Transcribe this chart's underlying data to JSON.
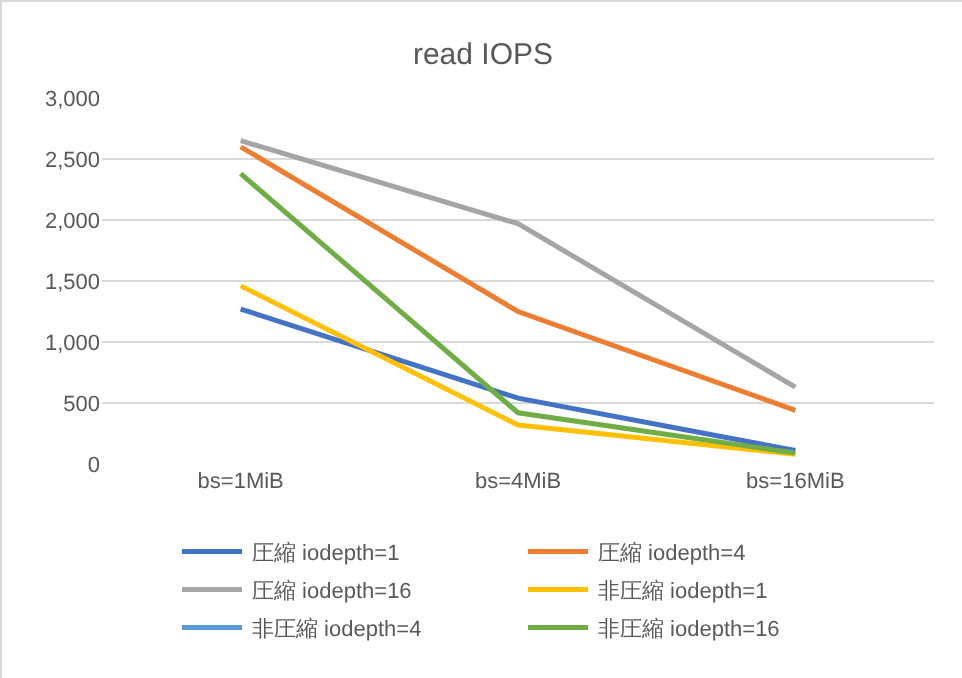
{
  "chart_data": {
    "type": "line",
    "title": "read IOPS",
    "categories": [
      "bs=1MiB",
      "bs=4MiB",
      "bs=16MiB"
    ],
    "series": [
      {
        "name": "圧縮 iodepth=1",
        "color": "#4472c4",
        "values": [
          1270,
          540,
          110
        ]
      },
      {
        "name": "圧縮 iodepth=4",
        "color": "#ed7d31",
        "values": [
          2600,
          1250,
          440
        ]
      },
      {
        "name": "圧縮 iodepth=16",
        "color": "#a5a5a5",
        "values": [
          2650,
          1970,
          630
        ]
      },
      {
        "name": "非圧縮 iodepth=1",
        "color": "#ffc000",
        "values": [
          1460,
          320,
          80
        ]
      },
      {
        "name": "非圧縮 iodepth=4",
        "color": "#5b9bd5",
        "values": [
          null,
          null,
          null
        ]
      },
      {
        "name": "非圧縮 iodepth=16",
        "color": "#70ad47",
        "values": [
          2380,
          420,
          90
        ]
      }
    ],
    "ylim": [
      0,
      3000
    ],
    "yticks": [
      {
        "value": 0,
        "label": "0"
      },
      {
        "value": 500,
        "label": "500"
      },
      {
        "value": 1000,
        "label": "1,000"
      },
      {
        "value": 1500,
        "label": "1,500"
      },
      {
        "value": 2000,
        "label": "2,000"
      },
      {
        "value": 2500,
        "label": "2,500"
      },
      {
        "value": 3000,
        "label": "3,000"
      }
    ],
    "grid": "y",
    "legend": "bottom",
    "marker": "none",
    "line_style": "solid"
  }
}
